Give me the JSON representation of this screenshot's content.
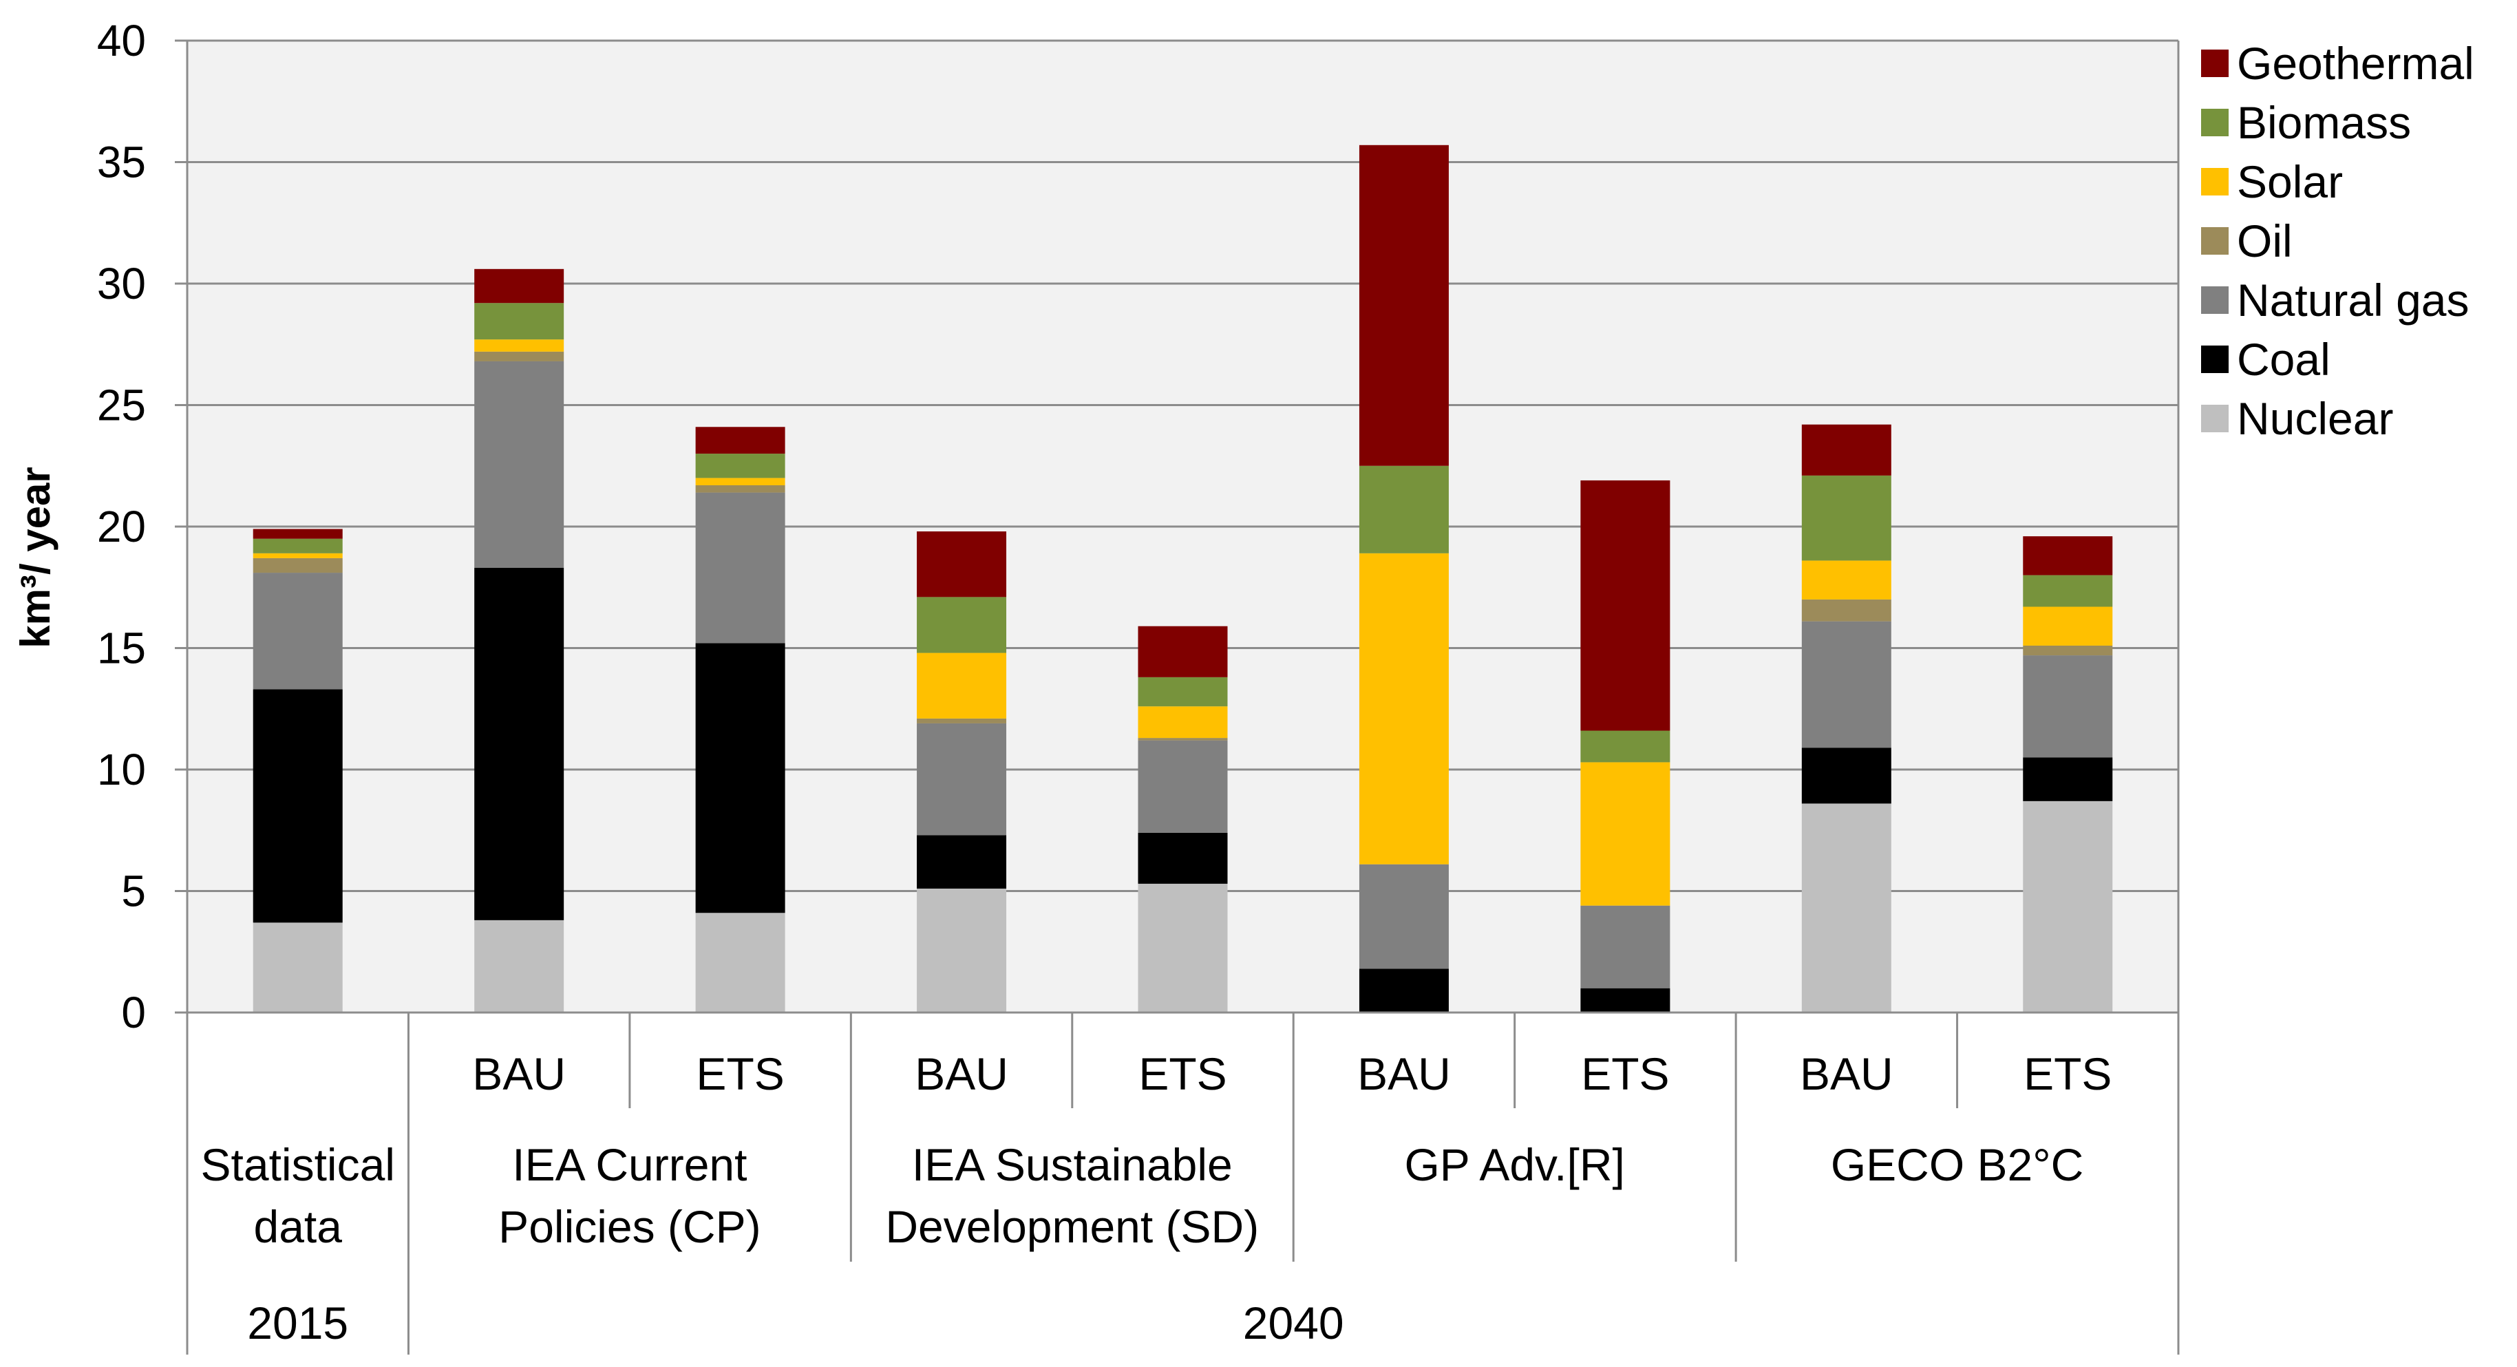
{
  "chart_data": {
    "type": "bar",
    "stacked": true,
    "ylabel": "km³/ year",
    "ylim": [
      0,
      40
    ],
    "yticks": [
      0,
      5,
      10,
      15,
      20,
      25,
      30,
      35,
      40
    ],
    "grid": true,
    "legend_position": "right",
    "categories": [
      {
        "scenario": "Statistical data",
        "case": "",
        "year": "2015"
      },
      {
        "scenario": "IEA Current Policies (CP)",
        "case": "BAU",
        "year": "2040"
      },
      {
        "scenario": "IEA Current Policies (CP)",
        "case": "ETS",
        "year": "2040"
      },
      {
        "scenario": "IEA Sustainable Development (SD)",
        "case": "BAU",
        "year": "2040"
      },
      {
        "scenario": "IEA Sustainable Development (SD)",
        "case": "ETS",
        "year": "2040"
      },
      {
        "scenario": "GP Adv.[R]",
        "case": "BAU",
        "year": "2040"
      },
      {
        "scenario": "GP Adv.[R]",
        "case": "ETS",
        "year": "2040"
      },
      {
        "scenario": "GECO B2°C",
        "case": "BAU",
        "year": "2040"
      },
      {
        "scenario": "GECO B2°C",
        "case": "ETS",
        "year": "2040"
      }
    ],
    "group_labels": [
      {
        "lines": [
          "Statistical",
          "data"
        ]
      },
      {
        "lines": [
          "IEA Current",
          "Policies (CP)"
        ]
      },
      {
        "lines": [
          "IEA Sustainable",
          "Development (SD)"
        ]
      },
      {
        "lines": [
          "GP Adv.[R]"
        ]
      },
      {
        "lines": [
          "GECO B2°C"
        ]
      }
    ],
    "year_labels": [
      "2015",
      "2040"
    ],
    "case_labels": [
      "BAU",
      "ETS"
    ],
    "series": [
      {
        "name": "Nuclear",
        "color": "#BFBFBF",
        "values": [
          3.7,
          3.8,
          4.1,
          5.1,
          5.3,
          0.0,
          0.0,
          8.6,
          8.7
        ]
      },
      {
        "name": "Coal",
        "color": "#000000",
        "values": [
          9.6,
          14.5,
          11.1,
          2.2,
          2.1,
          1.8,
          1.0,
          2.3,
          1.8
        ]
      },
      {
        "name": "Natural gas",
        "color": "#808080",
        "values": [
          4.8,
          8.5,
          6.2,
          4.6,
          3.8,
          4.3,
          3.4,
          5.2,
          4.2
        ]
      },
      {
        "name": "Oil",
        "color": "#9C8B5A",
        "values": [
          0.6,
          0.4,
          0.3,
          0.2,
          0.1,
          0.0,
          0.0,
          0.9,
          0.4
        ]
      },
      {
        "name": "Solar",
        "color": "#FFC000",
        "values": [
          0.2,
          0.5,
          0.3,
          2.7,
          1.3,
          12.8,
          5.9,
          1.6,
          1.6
        ]
      },
      {
        "name": "Biomass",
        "color": "#77933C",
        "values": [
          0.6,
          1.5,
          1.0,
          2.3,
          1.2,
          3.6,
          1.3,
          3.5,
          1.3
        ]
      },
      {
        "name": "Geothermal",
        "color": "#800000",
        "values": [
          0.4,
          1.4,
          1.1,
          2.7,
          2.1,
          13.2,
          10.3,
          2.1,
          1.6
        ]
      }
    ]
  }
}
